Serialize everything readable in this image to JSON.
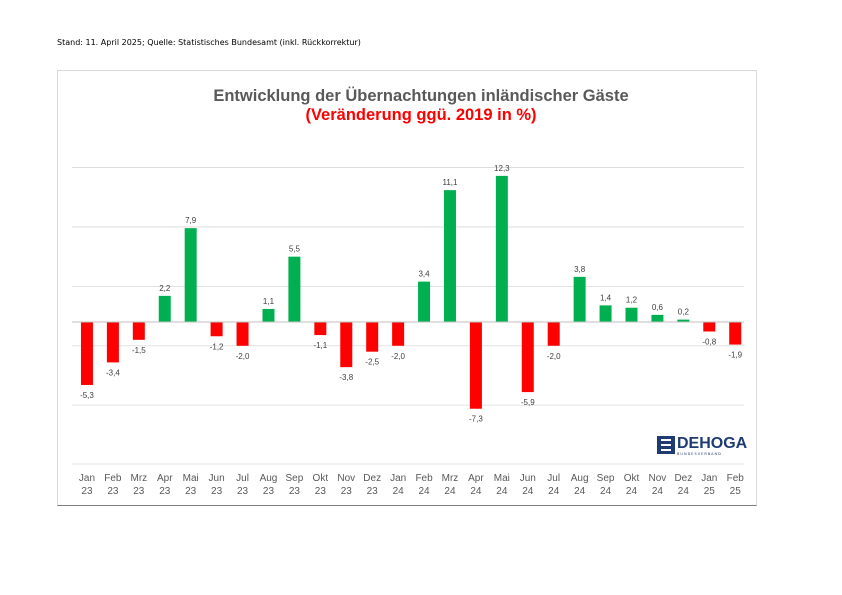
{
  "header": {
    "source_note": "Stand: 11. April 2025; Quelle: Statistisches Bundesamt (inkl. Rückkorrektur)"
  },
  "logo": {
    "text": "DEHOGA",
    "subtext": "BUNDESVERBAND"
  },
  "colors": {
    "positive": "#00b050",
    "negative": "#ff0000",
    "title": "#595959",
    "subtitle": "#ff0000",
    "grid": "#d9d9d9"
  },
  "chart_data": {
    "type": "bar",
    "title": "Entwicklung der Übernachtungen inländischer Gäste",
    "subtitle": "(Veränderung ggü. 2019 in %)",
    "xlabel": "",
    "ylabel": "",
    "ylim": [
      -10,
      15
    ],
    "grid": true,
    "legend": "none",
    "categories": [
      [
        "Jan",
        "23"
      ],
      [
        "Feb",
        "23"
      ],
      [
        "Mrz",
        "23"
      ],
      [
        "Apr",
        "23"
      ],
      [
        "Mai",
        "23"
      ],
      [
        "Jun",
        "23"
      ],
      [
        "Jul",
        "23"
      ],
      [
        "Aug",
        "23"
      ],
      [
        "Sep",
        "23"
      ],
      [
        "Okt",
        "23"
      ],
      [
        "Nov",
        "23"
      ],
      [
        "Dez",
        "23"
      ],
      [
        "Jan",
        "24"
      ],
      [
        "Feb",
        "24"
      ],
      [
        "Mrz",
        "24"
      ],
      [
        "Apr",
        "24"
      ],
      [
        "Mai",
        "24"
      ],
      [
        "Jun",
        "24"
      ],
      [
        "Jul",
        "24"
      ],
      [
        "Aug",
        "24"
      ],
      [
        "Sep",
        "24"
      ],
      [
        "Okt",
        "24"
      ],
      [
        "Nov",
        "24"
      ],
      [
        "Dez",
        "24"
      ],
      [
        "Jan",
        "25"
      ],
      [
        "Feb",
        "25"
      ]
    ],
    "values": [
      -5.3,
      -3.4,
      -1.5,
      2.2,
      7.9,
      -1.2,
      -2.0,
      1.1,
      5.5,
      -1.1,
      -3.8,
      -2.5,
      -2.0,
      3.4,
      11.1,
      -7.3,
      12.3,
      -5.9,
      -2.0,
      3.8,
      1.4,
      1.2,
      0.6,
      0.2,
      -0.8,
      -1.9
    ],
    "labels": [
      "-5,3",
      "-3,4",
      "-1,5",
      "2,2",
      "7,9",
      "-1,2",
      "-2,0",
      "1,1",
      "5,5",
      "-1,1",
      "-3,8",
      "-2,5",
      "-2,0",
      "3,4",
      "11,1",
      "-7,3",
      "12,3",
      "-5,9",
      "-2,0",
      "3,8",
      "1,4",
      "1,2",
      "0,6",
      "0,2",
      "-0,8",
      "-1,9"
    ]
  }
}
